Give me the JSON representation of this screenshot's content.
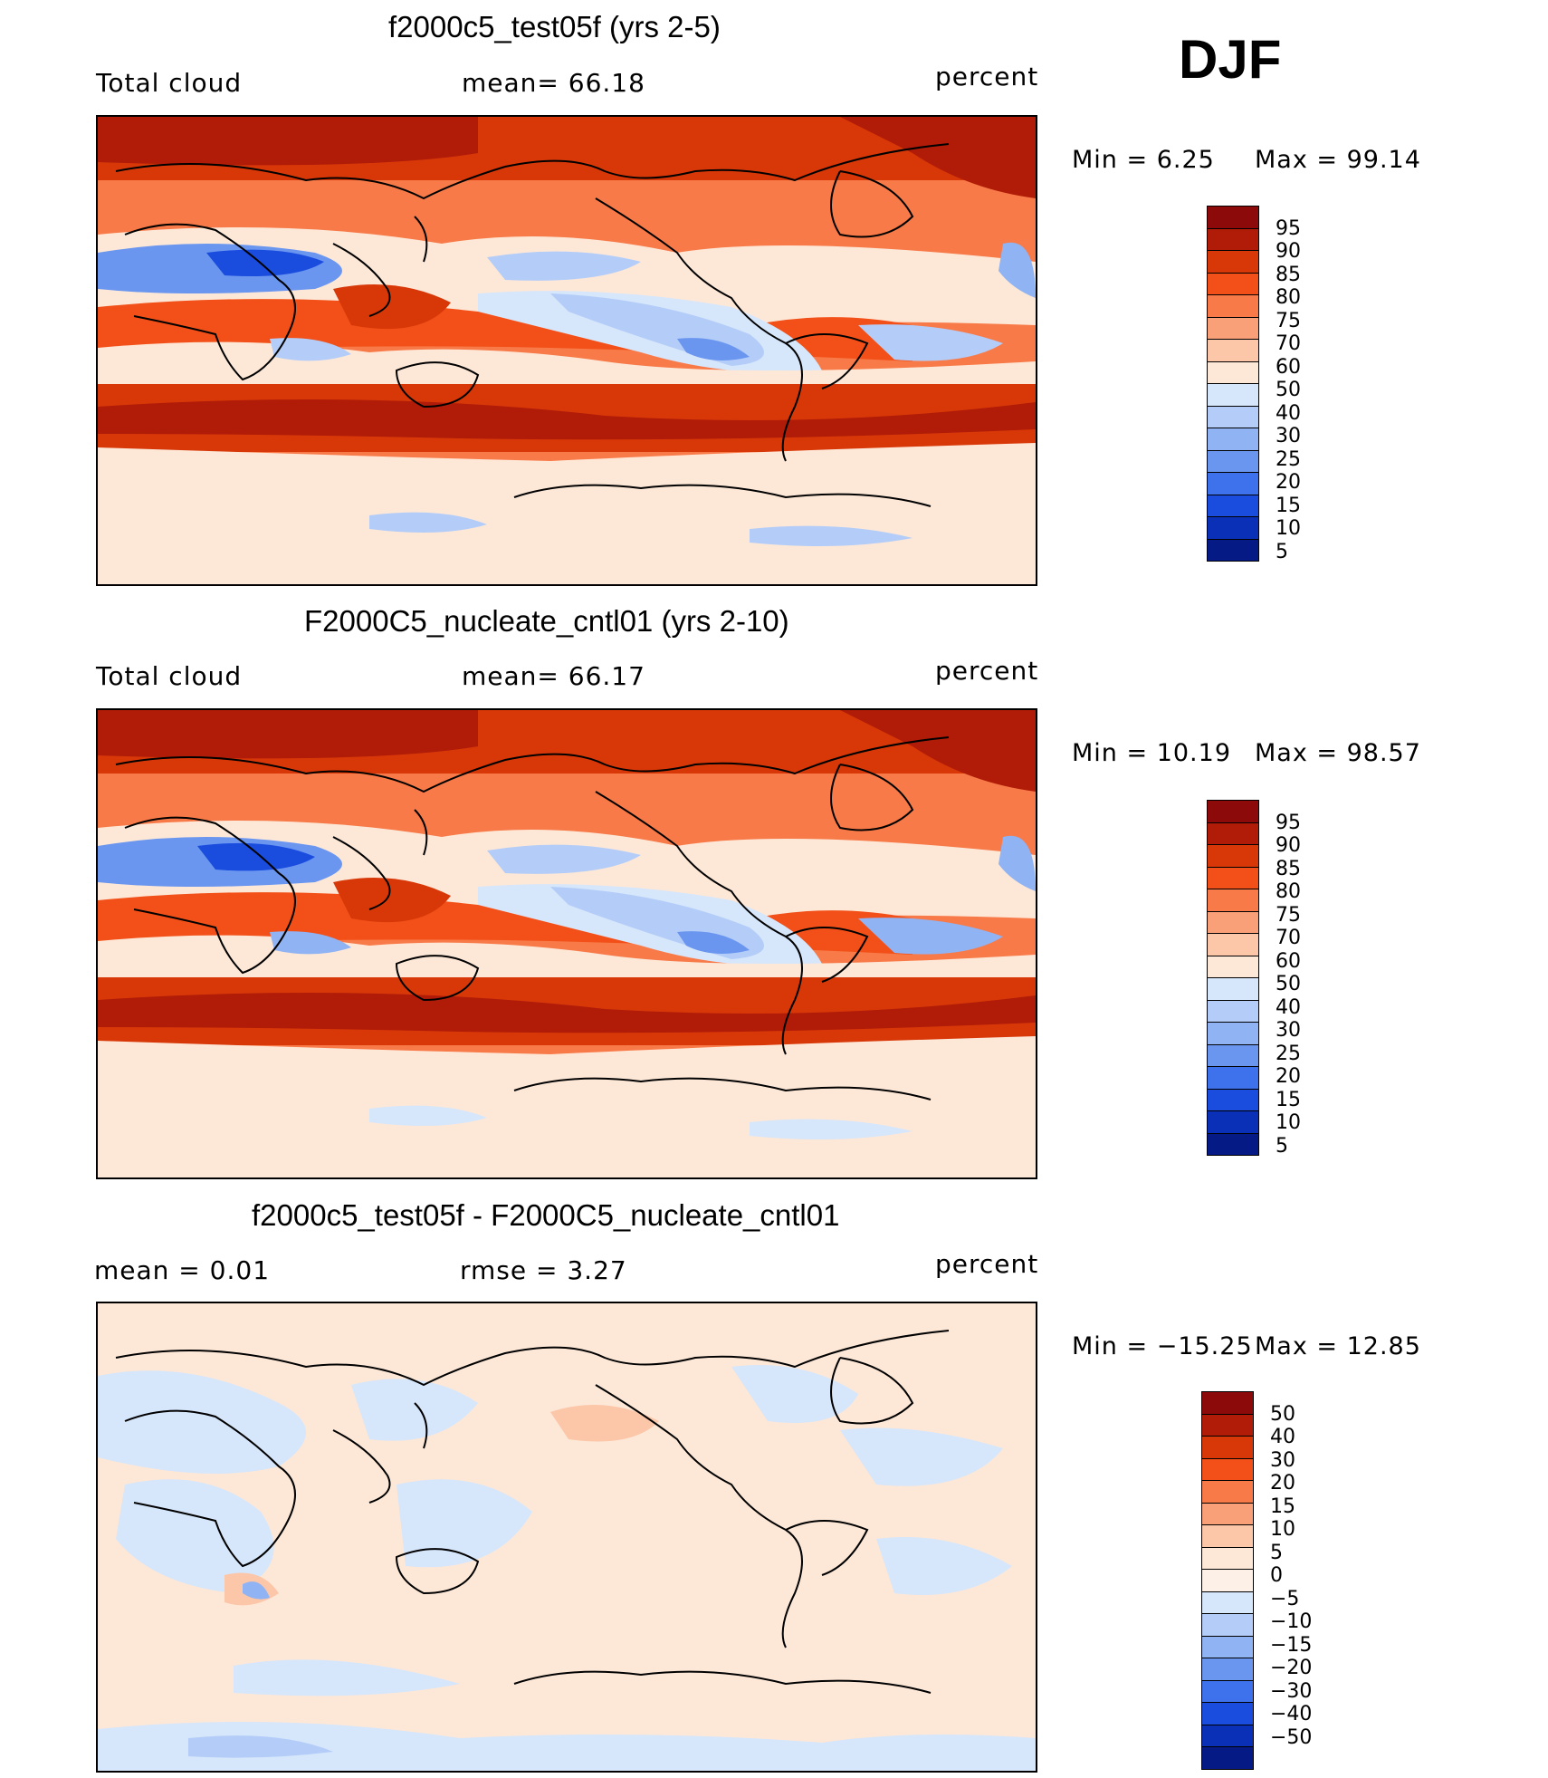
{
  "season": "DJF",
  "panels": [
    {
      "title": "f2000c5_test05f (yrs 2-5)",
      "left": "Total cloud",
      "center": "mean=   66.18",
      "right": "percent",
      "min_label": "Min  =    6.25",
      "max_label": "Max  =   99.14",
      "legend_labels": [
        "95",
        "90",
        "85",
        "80",
        "75",
        "70",
        "60",
        "50",
        "40",
        "30",
        "25",
        "20",
        "15",
        "10",
        "5"
      ]
    },
    {
      "title": "F2000C5_nucleate_cntl01 (yrs 2-10)",
      "left": "Total cloud",
      "center": "mean=   66.17",
      "right": "percent",
      "min_label": "Min  =  10.19",
      "max_label": "Max  =   98.57",
      "legend_labels": [
        "95",
        "90",
        "85",
        "80",
        "75",
        "70",
        "60",
        "50",
        "40",
        "30",
        "25",
        "20",
        "15",
        "10",
        "5"
      ]
    },
    {
      "title": "f2000c5_test05f - F2000C5_nucleate_cntl01",
      "left": "mean  =     0.01",
      "center": "rmse  =     3.27",
      "right": "percent",
      "min_label": "Min  = −15.25",
      "max_label": "Max  =   12.85",
      "legend_labels": [
        "50",
        "40",
        "30",
        "20",
        "15",
        "10",
        "5",
        "0",
        "−5",
        "−10",
        "−15",
        "−20",
        "−30",
        "−40",
        "−50"
      ]
    }
  ],
  "colors": {
    "abs_scale": [
      "#8c0a0a",
      "#b01c08",
      "#d83808",
      "#f25018",
      "#f87a48",
      "#faa078",
      "#fcc6a8",
      "#fde8d8",
      "#d6e6fb",
      "#b4cdf8",
      "#90b3f4",
      "#6a96f0",
      "#3e72ec",
      "#1a4cde",
      "#0a30b8",
      "#061a86"
    ],
    "diff_scale": [
      "#8c0a0a",
      "#b01c08",
      "#d83808",
      "#f25018",
      "#f87a48",
      "#faa078",
      "#fcc6a8",
      "#fde8d8",
      "#fdf0e6",
      "#d6e6fb",
      "#b4cdf8",
      "#90b3f4",
      "#6a96f0",
      "#3e72ec",
      "#1a4cde",
      "#0a30b8",
      "#061a86"
    ]
  }
}
